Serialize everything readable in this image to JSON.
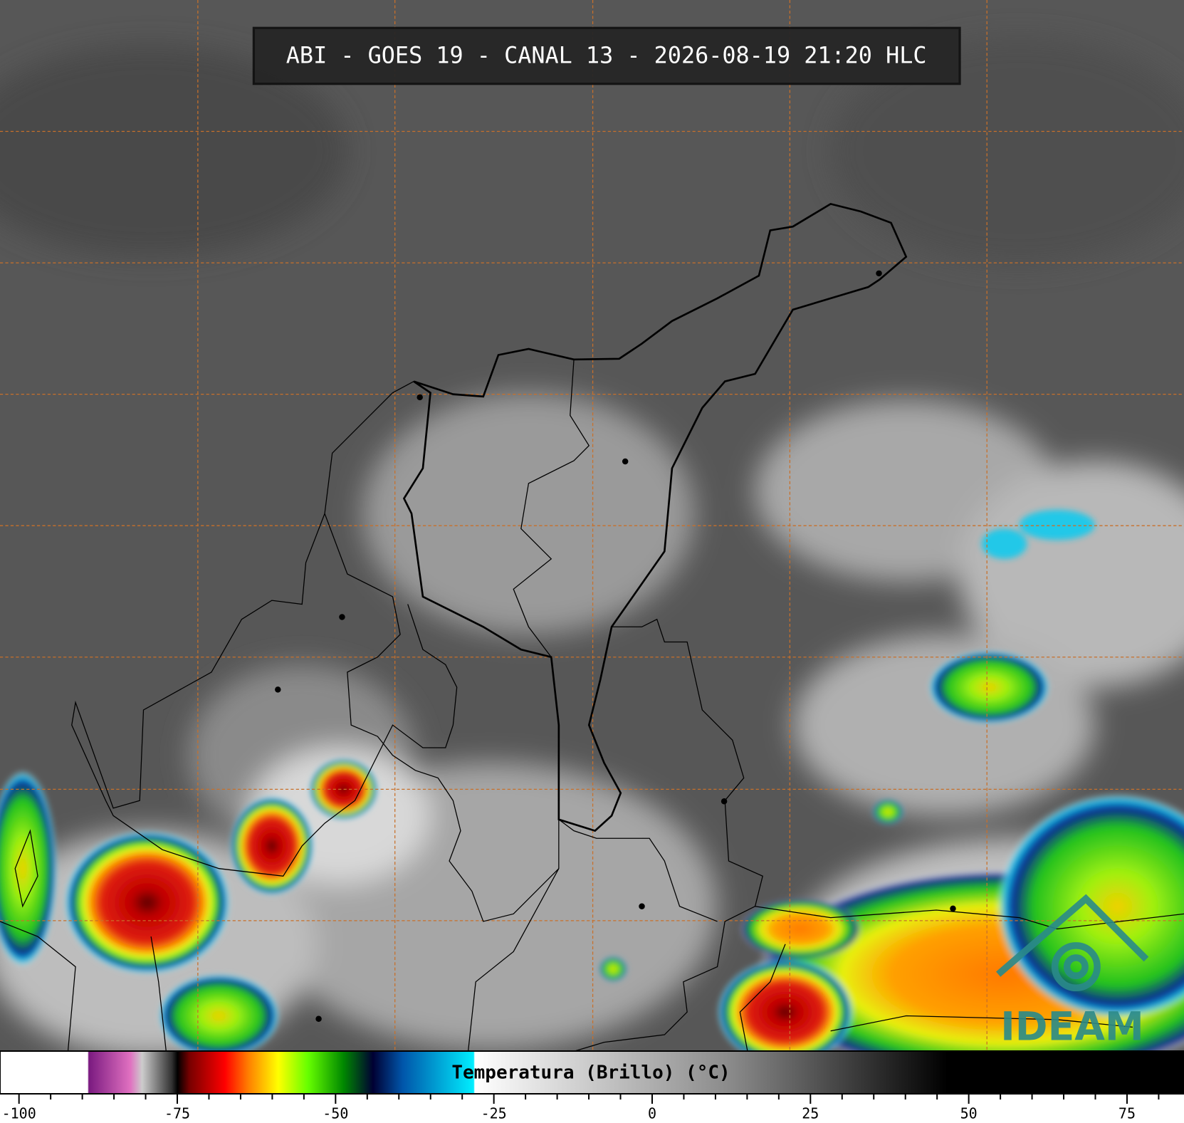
{
  "header": {
    "title": "ABI - GOES 19 - CANAL 13 - 2026-08-19 21:20 HLC"
  },
  "colorbar": {
    "label": "Temperatura (Brillo) (°C)",
    "range": [
      -103,
      84
    ],
    "ticks": [
      -100,
      -75,
      -50,
      -25,
      0,
      25,
      50,
      75
    ],
    "minor_ticks": [
      -95,
      -90,
      -85,
      -80,
      -70,
      -65,
      -60,
      -55,
      -45,
      -40,
      -35,
      -30,
      -20,
      -15,
      -10,
      -5,
      5,
      10,
      15,
      20,
      30,
      35,
      40,
      45,
      55,
      60,
      65,
      70,
      80
    ]
  },
  "logo": {
    "text": "IDEAM"
  }
}
